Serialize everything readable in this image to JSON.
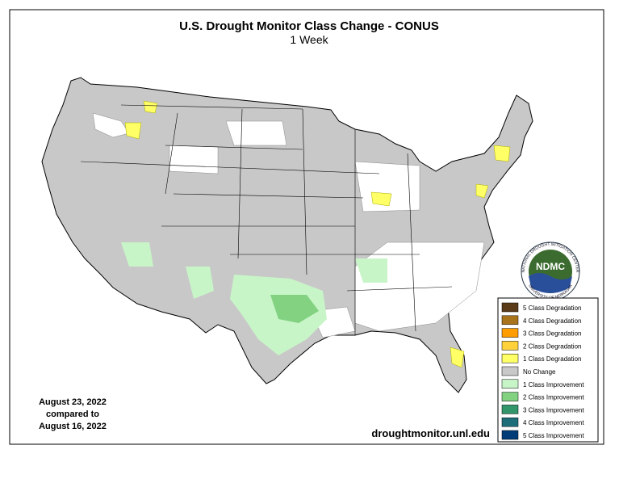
{
  "header": {
    "title": "U.S. Drought Monitor Class Change - CONUS",
    "subtitle": "1 Week"
  },
  "legend": {
    "items": [
      {
        "label": "5 Class Degradation",
        "color": "#5b3a17"
      },
      {
        "label": "4 Class Degradation",
        "color": "#a8731b"
      },
      {
        "label": "3 Class Degradation",
        "color": "#ff9c00"
      },
      {
        "label": "2 Class Degradation",
        "color": "#ffd23c"
      },
      {
        "label": "1 Class Degradation",
        "color": "#ffff66"
      },
      {
        "label": "No Change",
        "color": "#c8c8c8"
      },
      {
        "label": "1 Class Improvement",
        "color": "#c8f5c8"
      },
      {
        "label": "2 Class Improvement",
        "color": "#82d282"
      },
      {
        "label": "3 Class Improvement",
        "color": "#32966a"
      },
      {
        "label": "4 Class Improvement",
        "color": "#1e6e7a"
      },
      {
        "label": "5 Class Improvement",
        "color": "#003c78"
      }
    ]
  },
  "dates": {
    "current": "August 23, 2022",
    "compared": "compared to",
    "previous": "August 16, 2022"
  },
  "source": "droughtmonitor.unl.edu",
  "logo": {
    "text": "NDMC",
    "top": "NATIONAL DROUGHT MITIGATION CENTER",
    "bottom": "UNIVERSITY OF NEBRASKA"
  }
}
